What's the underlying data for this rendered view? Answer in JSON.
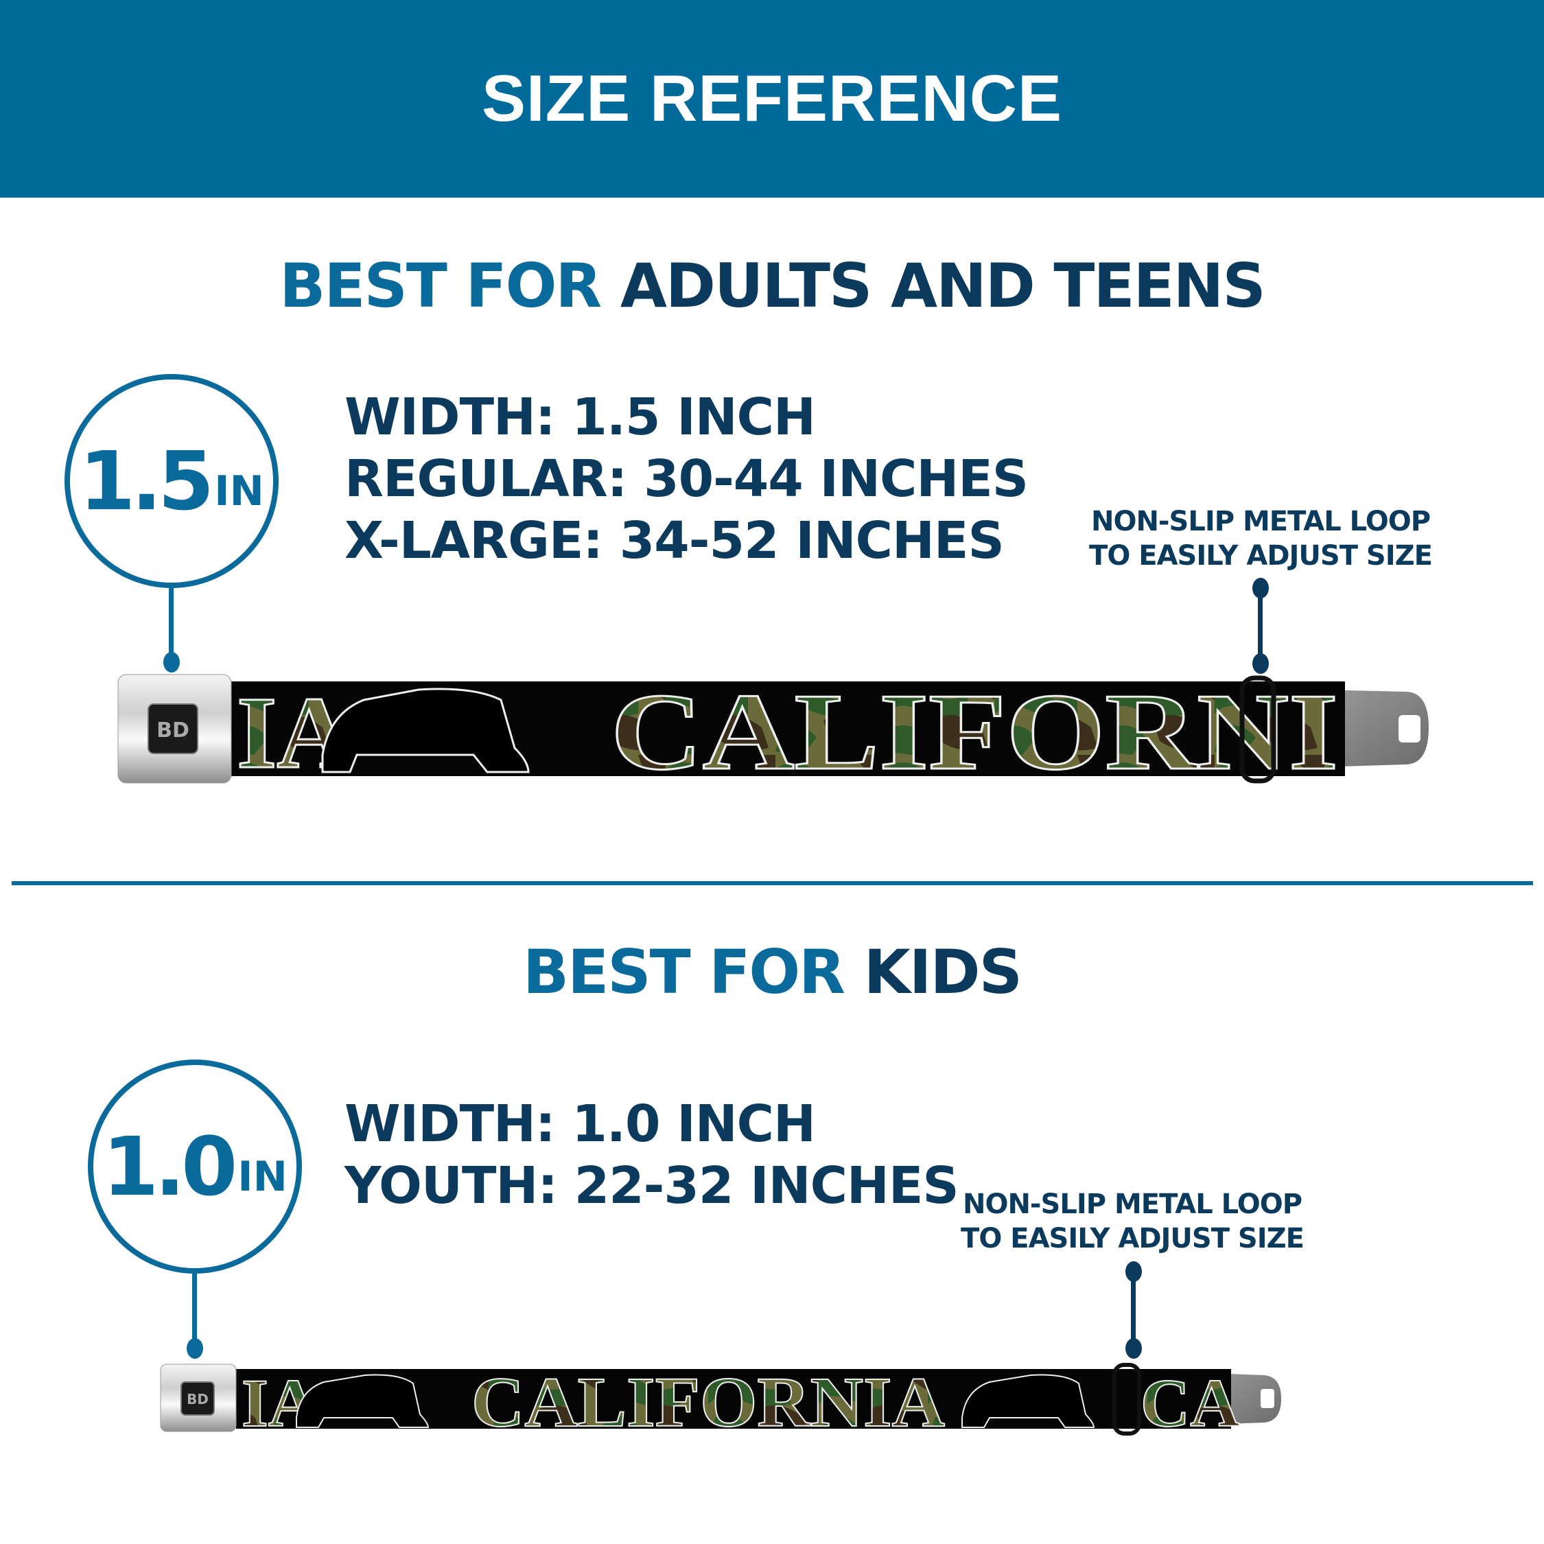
{
  "header": {
    "title": "SIZE REFERENCE"
  },
  "colors": {
    "header_bg": "#006a9a",
    "accent": "#0a6a9c",
    "navy": "#0b3a5c"
  },
  "adults": {
    "title_prefix": "BEST FOR",
    "title_main": "ADULTS AND TEENS",
    "badge_value": "1.5",
    "badge_unit": "IN",
    "specs": [
      "WIDTH: 1.5 INCH",
      "REGULAR: 30-44 INCHES",
      "X-LARGE: 34-52 INCHES"
    ],
    "note_lines": [
      "NON-SLIP METAL LOOP",
      "TO EASILY ADJUST SIZE"
    ],
    "belt_print": {
      "left": "IA",
      "main": "CALIFORNI"
    }
  },
  "kids": {
    "title_prefix": "BEST FOR",
    "title_main": "KIDS",
    "badge_value": "1.0",
    "badge_unit": "IN",
    "specs": [
      "WIDTH: 1.0 INCH",
      "YOUTH: 22-32 INCHES"
    ],
    "note_lines": [
      "NON-SLIP METAL LOOP",
      "TO EASILY ADJUST SIZE"
    ],
    "belt_print": {
      "left": "IA",
      "main": "CALIFORNIA",
      "right": "CA"
    }
  },
  "buckle_logo": "BD"
}
